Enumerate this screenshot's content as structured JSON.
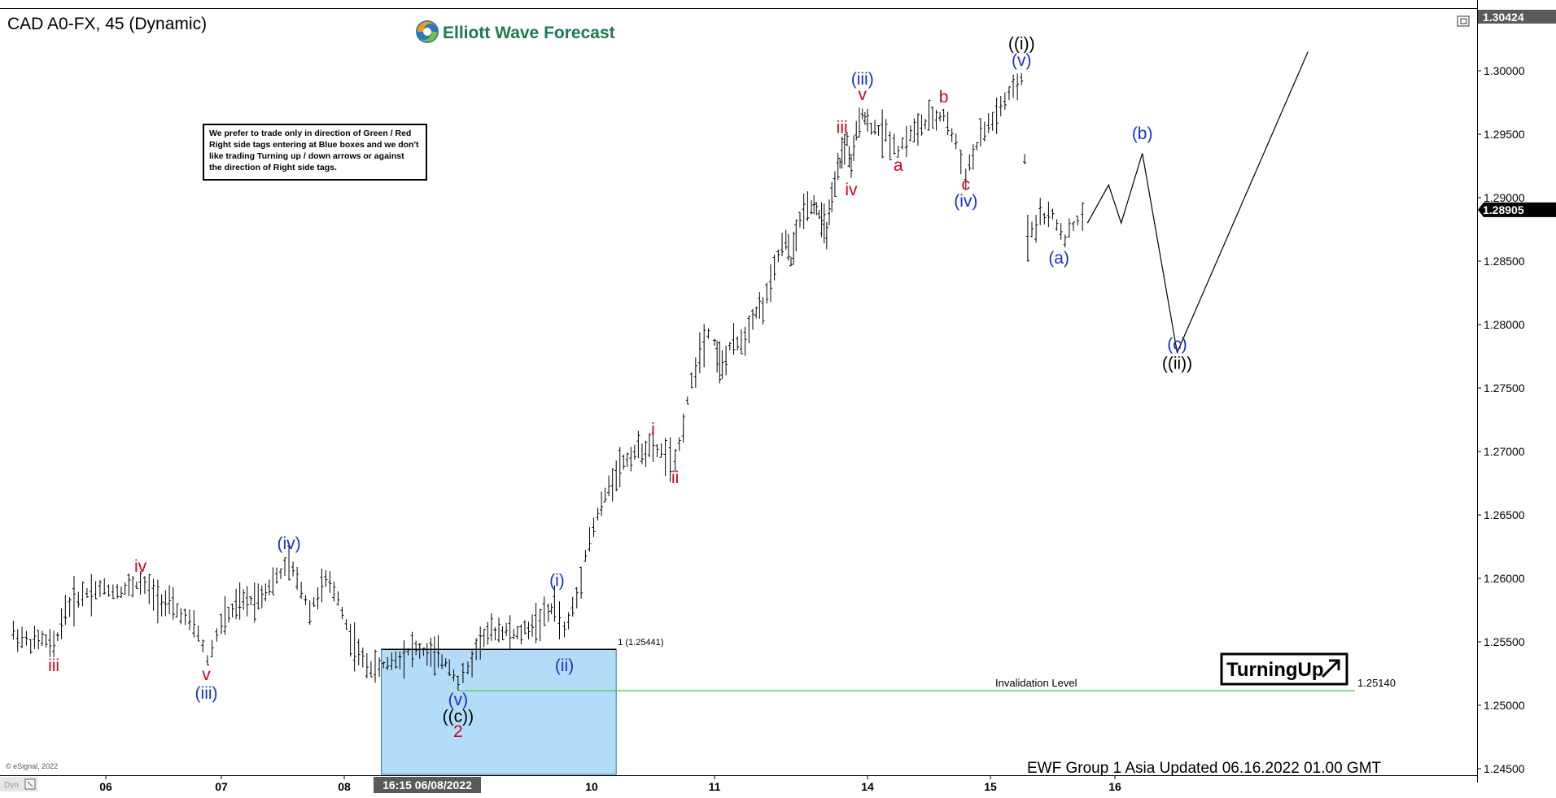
{
  "header": {
    "symbol_title": "CAD A0-FX, 45 (Dynamic)",
    "logo_text": "Elliott Wave Forecast"
  },
  "note_box": {
    "lines": [
      "We prefer to trade only in direction of Green / Red",
      "Right side tags entering at Blue boxes and we don't",
      "like trading Turning up / down arrows or against",
      "the direction of Right side tags."
    ]
  },
  "footer": {
    "update_text": "EWF Group 1 Asia Updated 06.16.2022 01.00 GMT",
    "copyright": "© eSignal, 2022",
    "corner_label": "Dyn",
    "cursor_date_label": "16:15 06/08/2022"
  },
  "badge": {
    "text": "TurningUp",
    "icon": "arrow-up-right-icon"
  },
  "chart_data": {
    "type": "ohlc",
    "y_axis": {
      "min": 1.245,
      "max": 1.3045,
      "ticks": [
        1.245,
        1.25,
        1.255,
        1.26,
        1.265,
        1.27,
        1.275,
        1.28,
        1.285,
        1.29,
        1.295,
        1.3
      ],
      "tick_labels": [
        "1.24500",
        "1.25000",
        "1.25500",
        "1.26000",
        "1.26500",
        "1.27000",
        "1.27500",
        "1.28000",
        "1.28500",
        "1.29000",
        "1.29500",
        "1.30000"
      ],
      "top_label": "1.30424",
      "current_price": 1.28905,
      "current_price_label": "1.28905"
    },
    "x_axis": {
      "min": 5.2,
      "max": 17.85,
      "ticks": [
        6,
        7,
        8,
        11,
        14,
        15,
        16
      ],
      "tick_labels": [
        "06",
        "07",
        "08",
        "11",
        "14",
        "15",
        "16"
      ],
      "extra_ticks": [
        {
          "x": 10,
          "label": "10"
        }
      ]
    },
    "price_path": [
      [
        5.2,
        1.2557
      ],
      [
        5.35,
        1.2549
      ],
      [
        5.45,
        1.2552
      ],
      [
        5.55,
        1.2545
      ],
      [
        5.65,
        1.2575
      ],
      [
        5.8,
        1.2588
      ],
      [
        5.95,
        1.2592
      ],
      [
        6.1,
        1.259
      ],
      [
        6.3,
        1.2596
      ],
      [
        6.45,
        1.2585
      ],
      [
        6.65,
        1.2572
      ],
      [
        6.8,
        1.2557
      ],
      [
        6.88,
        1.2535
      ],
      [
        7.0,
        1.2565
      ],
      [
        7.15,
        1.258
      ],
      [
        7.3,
        1.2585
      ],
      [
        7.45,
        1.26
      ],
      [
        7.55,
        1.2612
      ],
      [
        7.65,
        1.2592
      ],
      [
        7.72,
        1.2575
      ],
      [
        7.85,
        1.2598
      ],
      [
        7.95,
        1.2585
      ],
      [
        8.05,
        1.2553
      ],
      [
        8.15,
        1.2535
      ],
      [
        8.25,
        1.2528
      ],
      [
        8.35,
        1.2533
      ],
      [
        8.45,
        1.2538
      ],
      [
        8.55,
        1.2545
      ],
      [
        8.7,
        1.254
      ],
      [
        8.85,
        1.2532
      ],
      [
        8.92,
        1.2518
      ],
      [
        9.0,
        1.2528
      ],
      [
        9.1,
        1.2552
      ],
      [
        9.25,
        1.256
      ],
      [
        9.4,
        1.2555
      ],
      [
        9.55,
        1.2565
      ],
      [
        9.65,
        1.2572
      ],
      [
        9.7,
        1.258
      ],
      [
        9.78,
        1.2558
      ],
      [
        9.88,
        1.2585
      ],
      [
        9.95,
        1.262
      ],
      [
        10.05,
        1.265
      ],
      [
        10.2,
        1.2685
      ],
      [
        10.35,
        1.27
      ],
      [
        10.5,
        1.2703
      ],
      [
        10.6,
        1.2698
      ],
      [
        10.68,
        1.2688
      ],
      [
        10.78,
        1.274
      ],
      [
        10.88,
        1.278
      ],
      [
        10.95,
        1.2795
      ],
      [
        11.05,
        1.2778
      ],
      [
        11.15,
        1.2765
      ],
      [
        11.3,
        1.2782
      ],
      [
        11.45,
        1.2785
      ],
      [
        11.6,
        1.279
      ],
      [
        11.75,
        1.2808
      ],
      [
        11.95,
        1.2815
      ],
      [
        12.1,
        1.283
      ],
      [
        12.25,
        1.2855
      ],
      [
        12.4,
        1.2865
      ],
      [
        12.5,
        1.285
      ],
      [
        12.6,
        1.287
      ],
      [
        12.75,
        1.2892
      ],
      [
        12.9,
        1.2895
      ],
      [
        13.0,
        1.2893
      ],
      [
        13.1,
        1.288
      ],
      [
        13.2,
        1.2875
      ],
      [
        13.3,
        1.2895
      ],
      [
        13.42,
        1.292
      ],
      [
        13.5,
        1.2935
      ],
      [
        13.6,
        1.2945
      ],
      [
        13.68,
        1.2922
      ],
      [
        13.78,
        1.295
      ],
      [
        13.9,
        1.2968
      ],
      [
        14.0,
        1.2958
      ],
      [
        14.15,
        1.295
      ],
      [
        14.25,
        1.2938
      ],
      [
        14.35,
        1.295
      ],
      [
        14.5,
        1.296
      ],
      [
        14.62,
        1.2965
      ],
      [
        14.72,
        1.2942
      ],
      [
        14.8,
        1.2918
      ],
      [
        14.92,
        1.2948
      ],
      [
        15.05,
        1.2965
      ],
      [
        15.15,
        1.298
      ],
      [
        15.25,
        1.2992
      ],
      [
        15.3,
        1.287
      ],
      [
        15.4,
        1.2885
      ],
      [
        15.5,
        1.2885
      ],
      [
        15.6,
        1.2868
      ],
      [
        15.7,
        1.2882
      ],
      [
        15.78,
        1.289
      ]
    ],
    "projection_path": [
      [
        15.78,
        1.288
      ],
      [
        15.95,
        1.291
      ],
      [
        16.05,
        1.288
      ],
      [
        16.22,
        1.2935
      ],
      [
        16.5,
        1.2778
      ],
      [
        17.55,
        1.3015
      ]
    ],
    "levels": [
      {
        "name": "fib",
        "value": 1.25441,
        "label": "1 (1.25441)"
      },
      {
        "name": "invalidation",
        "value": 1.2514,
        "label": "Invalidation Level",
        "value_label": "1.25140"
      }
    ],
    "blue_box": {
      "x0": 8.3,
      "x1": 10.2,
      "y0": 1.24455,
      "y1": 1.25441
    },
    "annotations": [
      {
        "t": "iii",
        "x": 5.55,
        "y": 1.2527,
        "c": "red"
      },
      {
        "t": "iv",
        "x": 6.3,
        "y": 1.2605,
        "c": "red"
      },
      {
        "t": "v",
        "x": 6.87,
        "y": 1.252,
        "c": "red"
      },
      {
        "t": "(iii)",
        "x": 6.87,
        "y": 1.2505,
        "c": "blue"
      },
      {
        "t": "(iv)",
        "x": 7.55,
        "y": 1.2623,
        "c": "blue"
      },
      {
        "t": "(i)",
        "x": 9.72,
        "y": 1.2594,
        "c": "blue"
      },
      {
        "t": "(ii)",
        "x": 9.78,
        "y": 1.2527,
        "c": "blue"
      },
      {
        "t": "(v)",
        "x": 8.92,
        "y": 1.25,
        "c": "blue"
      },
      {
        "t": "((c))",
        "x": 8.92,
        "y": 1.2487,
        "c": "black"
      },
      {
        "t": "2",
        "x": 8.92,
        "y": 1.2475,
        "c": "red"
      },
      {
        "t": "i",
        "x": 10.5,
        "y": 1.2713,
        "c": "red"
      },
      {
        "t": "ii",
        "x": 10.68,
        "y": 1.2675,
        "c": "red"
      },
      {
        "t": "iii",
        "x": 13.5,
        "y": 1.2951,
        "c": "red"
      },
      {
        "t": "iv",
        "x": 13.68,
        "y": 1.2902,
        "c": "red"
      },
      {
        "t": "v",
        "x": 13.9,
        "y": 1.2977,
        "c": "red"
      },
      {
        "t": "(iii)",
        "x": 13.9,
        "y": 1.2989,
        "c": "blue"
      },
      {
        "t": "a",
        "x": 14.25,
        "y": 1.2921,
        "c": "red"
      },
      {
        "t": "b",
        "x": 14.62,
        "y": 1.2975,
        "c": "red"
      },
      {
        "t": "c",
        "x": 14.8,
        "y": 1.2906,
        "c": "red"
      },
      {
        "t": "(iv)",
        "x": 14.8,
        "y": 1.2893,
        "c": "blue"
      },
      {
        "t": "(v)",
        "x": 15.25,
        "y": 1.3004,
        "c": "blue"
      },
      {
        "t": "((i))",
        "x": 15.25,
        "y": 1.3017,
        "c": "black"
      },
      {
        "t": "(a)",
        "x": 15.55,
        "y": 1.2848,
        "c": "blue"
      },
      {
        "t": "(b)",
        "x": 16.22,
        "y": 1.2946,
        "c": "blue"
      },
      {
        "t": "(c)",
        "x": 16.5,
        "y": 1.278,
        "c": "blue"
      },
      {
        "t": "((ii))",
        "x": 16.5,
        "y": 1.2765,
        "c": "black"
      }
    ]
  }
}
